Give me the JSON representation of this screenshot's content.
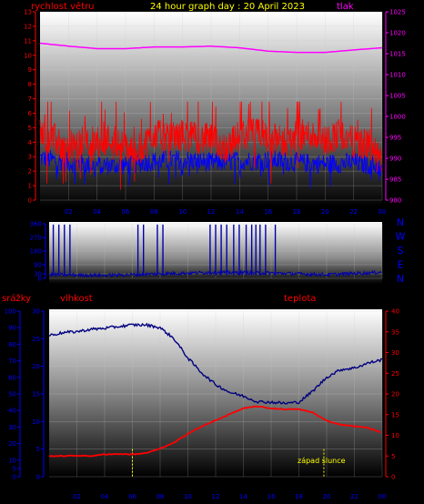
{
  "colors": {
    "red": "#ff0000",
    "magenta": "#ff00ff",
    "yellow": "#ffff00",
    "blue": "#0000ff",
    "navy": "#000080",
    "darkblue": "#0000aa",
    "grid": "#c8c8c8"
  },
  "chart_data": [
    {
      "id": "wind_pressure",
      "type": "line",
      "title": "24 hour graph day : 20 April 2023",
      "left_label": "rychlost větru",
      "right_label": "tlak",
      "x_ticks": [
        "02",
        "04",
        "06",
        "08",
        "10",
        "12",
        "14",
        "16",
        "18",
        "20",
        "22",
        "00"
      ],
      "ylim_left": [
        0,
        13
      ],
      "yticks_left": [
        0,
        1,
        2,
        3,
        4,
        5,
        6,
        7,
        8,
        9,
        10,
        11,
        12,
        13
      ],
      "ylim_right": [
        980,
        1025
      ],
      "yticks_right": [
        980,
        985,
        990,
        995,
        1000,
        1005,
        1010,
        1015,
        1020,
        1025
      ],
      "series": [
        {
          "axis": "right",
          "color": "#ff00ff",
          "x": [
            0,
            2,
            4,
            6,
            8,
            10,
            12,
            14,
            16,
            18,
            20,
            22,
            24
          ],
          "values": [
            1017.5,
            1016.8,
            1016.2,
            1016.2,
            1016.6,
            1016.6,
            1016.8,
            1016.4,
            1015.6,
            1015.3,
            1015.3,
            1015.9,
            1016.4
          ]
        },
        {
          "axis": "left",
          "color": "#ff0000",
          "x": [
            0,
            1,
            2,
            3,
            4,
            5,
            6,
            7,
            8,
            9,
            10,
            11,
            12,
            13,
            14,
            15,
            16,
            17,
            18,
            19,
            20,
            21,
            22,
            23,
            24
          ],
          "values": [
            4.6,
            4.2,
            3.3,
            4.1,
            4.0,
            4.3,
            3.6,
            3.5,
            4.6,
            4.2,
            4.5,
            4.3,
            4.2,
            3.6,
            4.5,
            4.6,
            4.4,
            4.0,
            4.5,
            4.5,
            4.1,
            4.6,
            4.0,
            3.8,
            2.6
          ]
        },
        {
          "axis": "left",
          "color": "#0000ff",
          "x": [
            0,
            2,
            4,
            6,
            8,
            10,
            12,
            14,
            16,
            18,
            20,
            22,
            24
          ],
          "values": [
            2.9,
            2.6,
            2.4,
            2.4,
            2.7,
            2.8,
            2.6,
            2.7,
            2.8,
            2.6,
            2.5,
            2.6,
            2.3
          ]
        }
      ]
    },
    {
      "id": "wind_direction",
      "type": "line",
      "yticks": [
        0,
        30,
        90,
        180,
        270,
        360
      ],
      "ylim": [
        0,
        360
      ],
      "compass_labels": [
        "N",
        "W",
        "S",
        "E",
        "N"
      ],
      "x_ticks": [
        "02",
        "04",
        "06",
        "08",
        "10",
        "12",
        "14",
        "16",
        "18",
        "20",
        "22",
        "00"
      ],
      "baseline": {
        "x": [
          0,
          4,
          8,
          12,
          16,
          20,
          24
        ],
        "values": [
          25,
          20,
          30,
          40,
          35,
          25,
          40
        ]
      },
      "spikes_at_hour": [
        0.3,
        0.7,
        1.1,
        1.5,
        6.4,
        6.8,
        7.8,
        8.2,
        11.6,
        12.0,
        12.4,
        12.8,
        13.3,
        13.7,
        14.2,
        14.6,
        14.9,
        15.2,
        15.6,
        16.3
      ]
    },
    {
      "id": "rain_humidity_temp",
      "type": "line",
      "left_label": "srážky",
      "left2_label": "vlhkost",
      "right_label": "teplota",
      "annotation": "západ slunce",
      "yticks_rain": [
        0,
        5,
        10,
        20,
        30,
        40,
        50,
        60,
        70,
        80,
        90,
        100
      ],
      "ylim_rain": [
        0,
        100
      ],
      "yticks_humidity": [
        0,
        5,
        10,
        15,
        20,
        25,
        30
      ],
      "ylim_humidity": [
        0,
        30
      ],
      "yticks_temp": [
        0,
        5,
        10,
        15,
        20,
        25,
        30,
        35,
        40
      ],
      "ylim_temp": [
        0,
        40
      ],
      "x_ticks": [
        "02",
        "04",
        "06",
        "08",
        "10",
        "12",
        "14",
        "16",
        "18",
        "20",
        "22",
        "00"
      ],
      "series": [
        {
          "name": "vlhkost",
          "axis": "humidity",
          "color": "#000080",
          "x": [
            0,
            1,
            2,
            3,
            4,
            5,
            6,
            7,
            8,
            9,
            10,
            11,
            12,
            13,
            14,
            15,
            16,
            17,
            18,
            19,
            20,
            21,
            22,
            23,
            24
          ],
          "values": [
            25.6,
            26.1,
            26.3,
            26.7,
            26.9,
            27.2,
            27.5,
            27.5,
            27.0,
            25.0,
            21.5,
            18.8,
            16.7,
            15.3,
            14.6,
            13.6,
            13.5,
            13.3,
            13.5,
            15.5,
            18.0,
            19.4,
            19.7,
            20.6,
            21.2
          ]
        },
        {
          "name": "teplota",
          "axis": "temp",
          "color": "#ff0000",
          "x": [
            0,
            1,
            2,
            3,
            4,
            5,
            6,
            7,
            8,
            9,
            10,
            11,
            12,
            13,
            14,
            15,
            16,
            17,
            18,
            19,
            20,
            21,
            22,
            23,
            24
          ],
          "values": [
            5.0,
            5.0,
            5.1,
            5.0,
            5.4,
            5.5,
            5.4,
            5.7,
            6.8,
            8.2,
            10.4,
            12.1,
            13.6,
            15.1,
            16.5,
            17.0,
            16.5,
            16.3,
            16.3,
            15.5,
            13.5,
            12.6,
            12.2,
            11.8,
            10.6
          ]
        }
      ],
      "markers_at_hour": [
        6.0,
        19.8
      ]
    }
  ]
}
